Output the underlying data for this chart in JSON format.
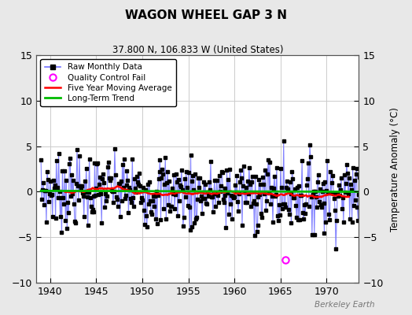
{
  "title": "WAGON WHEEL GAP 3 N",
  "subtitle": "37.800 N, 106.833 W (United States)",
  "ylabel": "Temperature Anomaly (°C)",
  "watermark": "Berkeley Earth",
  "xlim": [
    1938.5,
    1973.5
  ],
  "ylim": [
    -10,
    15
  ],
  "yticks": [
    -10,
    -5,
    0,
    5,
    10,
    15
  ],
  "xticks": [
    1940,
    1945,
    1950,
    1955,
    1960,
    1965,
    1970
  ],
  "background_color": "#e8e8e8",
  "plot_bg_color": "#ffffff",
  "raw_line_color": "#7070ff",
  "raw_marker_color": "#000000",
  "ma_color": "#ff0000",
  "trend_color": "#00bb00",
  "qc_color": "#ff00ff",
  "grid_color": "#cccccc",
  "seed": 7,
  "n_years": 36,
  "start_year": 1939
}
